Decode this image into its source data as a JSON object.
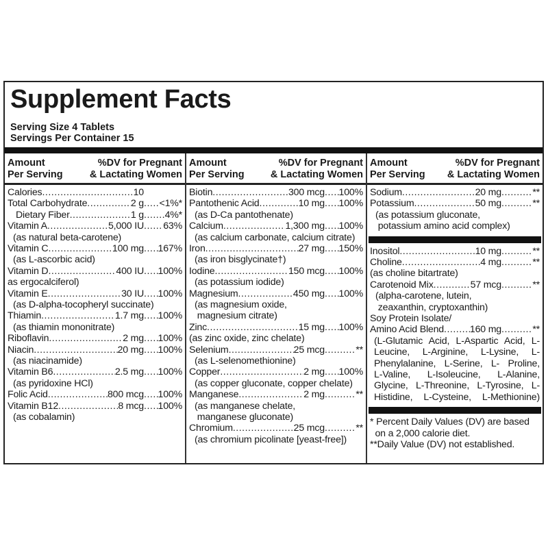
{
  "title": "Supplement Facts",
  "serving_size": "Serving Size 4 Tablets",
  "servings_per_container": "Servings Per Container 15",
  "header": {
    "left1": "Amount",
    "left2": "Per Serving",
    "right1": "%DV for Pregnant",
    "right2": "& Lactating Women"
  },
  "columns": [
    {
      "items": [
        {
          "name": "Calories",
          "amount": "10",
          "dv": ""
        },
        {
          "name": "Total Carbohydrate",
          "amount": "2 g",
          "dv": "<1%*"
        },
        {
          "name": "Dietary Fiber",
          "amount": "1 g",
          "dv": "4%*",
          "indent": true
        },
        {
          "name": "Vitamin A",
          "amount": "5,000 IU",
          "dv": "63%",
          "note": [
            "(as natural beta-carotene)"
          ]
        },
        {
          "name": "Vitamin C ",
          "amount": "100 mg",
          "dv": "167%",
          "note": [
            "(as L-ascorbic acid)"
          ]
        },
        {
          "name": "Vitamin D",
          "amount": "400 IU",
          "dv": "100%",
          "note": [
            "as ergocalciferol)"
          ],
          "flush": true
        },
        {
          "name": "Vitamin E",
          "amount": "30 IU",
          "dv": "100%",
          "note": [
            "(as D-alpha-tocopheryl succinate)"
          ]
        },
        {
          "name": "Thiamin",
          "amount": "1.7 mg",
          "dv": "100%",
          "note": [
            "(as thiamin mononitrate)"
          ]
        },
        {
          "name": "Riboflavin",
          "amount": "2 mg",
          "dv": "100%"
        },
        {
          "name": "Niacin",
          "amount": "20 mg",
          "dv": "100%",
          "note": [
            "(as niacinamide)"
          ]
        },
        {
          "name": "Vitamin B6 ",
          "amount": "2.5 mg",
          "dv": "100%",
          "note": [
            "(as pyridoxine HCl)"
          ]
        },
        {
          "name": "Folic Acid ",
          "amount": "800 mcg",
          "dv": "100%"
        },
        {
          "name": "Vitamin B12",
          "amount": "8 mcg",
          "dv": "100%",
          "note": [
            "(as cobalamin)"
          ]
        }
      ]
    },
    {
      "items": [
        {
          "name": "Biotin ",
          "amount": "300 mcg",
          "dv": "100%"
        },
        {
          "name": "Pantothenic Acid ",
          "amount": "10 mg",
          "dv": "100%",
          "note": [
            "(as D-Ca pantothenate)"
          ]
        },
        {
          "name": "Calcium",
          "amount": "1,300 mg",
          "dv": "100%",
          "note": [
            "(as calcium carbonate, calcium citrate)"
          ]
        },
        {
          "name": "Iron ",
          "amount": "27 mg",
          "dv": "150%",
          "note": [
            "(as iron bisglycinate†)"
          ]
        },
        {
          "name": "Iodine ",
          "amount": "150 mcg",
          "dv": "100%",
          "note": [
            "(as potassium iodide)"
          ]
        },
        {
          "name": "Magnesium ",
          "amount": "450 mg",
          "dv": "100%",
          "note": [
            "(as magnesium oxide,",
            " magnesium citrate)"
          ]
        },
        {
          "name": "Zinc ",
          "amount": "15 mg",
          "dv": "100%",
          "note": [
            "(as zinc oxide, zinc chelate)"
          ],
          "flush": true
        },
        {
          "name": "Selenium ",
          "amount": "25 mcg",
          "dv": "**",
          "note": [
            "(as L-selenomethionine)"
          ]
        },
        {
          "name": "Copper",
          "amount": "2 mg",
          "dv": "100%",
          "note": [
            "(as copper gluconate, copper chelate)"
          ]
        },
        {
          "name": "Manganese ",
          "amount": "2 mg",
          "dv": "**",
          "note": [
            "(as manganese chelate,",
            " manganese gluconate)"
          ]
        },
        {
          "name": "Chromium ",
          "amount": "25 mcg",
          "dv": "**",
          "note": [
            "(as chromium picolinate [yeast-free])"
          ]
        }
      ]
    },
    {
      "section1": [
        {
          "name": "Sodium ",
          "amount": "20 mg",
          "dv": "**"
        },
        {
          "name": "Potassium",
          "amount": "50 mg",
          "dv": "**",
          "note": [
            "(as potassium gluconate,",
            " potassium amino acid complex)"
          ]
        }
      ],
      "section2": [
        {
          "name": "Inositol",
          "amount": "10 mg",
          "dv": "**"
        },
        {
          "name": "Choline ",
          "amount": "4 mg",
          "dv": "**",
          "note": [
            "(as choline bitartrate)"
          ],
          "flush": true
        },
        {
          "name": "Carotenoid Mix ",
          "amount": "57 mcg",
          "dv": "**",
          "note": [
            "(alpha-carotene, lutein,",
            " zeaxanthin, cryptoxanthin)"
          ]
        },
        {
          "name": "Soy Protein Isolate/",
          "amount": "",
          "dv": "",
          "plain": true
        },
        {
          "name": " Amino Acid Blend ",
          "amount": "160 mg",
          "dv": "**",
          "note": [
            "(L-Glutamic Acid, L-Aspartic Acid, L-",
            "Leucine, L-Arginine, L-Lysine, L-",
            "Phenylalanine, L-Serine, L- Proline,",
            "L-Valine, L-Isoleucine, L-Alanine,",
            "Glycine, L-Threonine, L-Tyrosine, L-",
            "Histidine, L-Cysteine, L-Methionine)"
          ],
          "justify": true
        }
      ],
      "footnotes": [
        "* Percent Daily Values (DV) are based",
        "  on a 2,000 calorie diet.",
        "**Daily Value (DV) not established."
      ]
    }
  ]
}
